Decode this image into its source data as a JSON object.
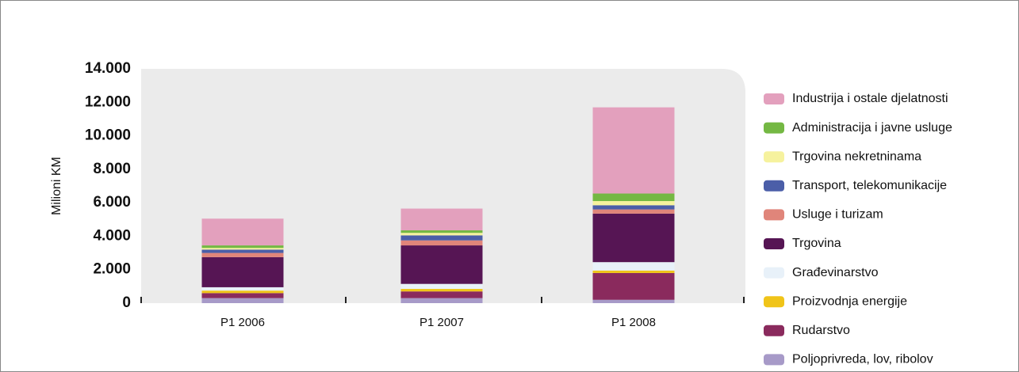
{
  "chart_data": {
    "type": "stacked_bar",
    "y_axis_label": "Milioni KM",
    "categories": [
      "P1 2006",
      "P1 2007",
      "P1 2008"
    ],
    "ylim": [
      0,
      14000
    ],
    "yticks": [
      0,
      {
        "value": 2000,
        "label": "2.000"
      },
      {
        "value": 4000,
        "label": "4.000"
      },
      {
        "value": 6000,
        "label": "6.000"
      },
      {
        "value": 8000,
        "label": "8.000"
      },
      {
        "value": 10000,
        "label": "10.000"
      },
      {
        "value": 12000,
        "label": "12.000"
      },
      {
        "value": 14000,
        "label": "14.000"
      }
    ],
    "series": [
      {
        "name": "Poljoprivreda, lov, ribolov",
        "color": "#a79ac8",
        "values": [
          300,
          300,
          200
        ]
      },
      {
        "name": "Rudarstvo",
        "color": "#8a2a5d",
        "values": [
          300,
          400,
          1600
        ]
      },
      {
        "name": "Proizvodnja energije",
        "color": "#f0c419",
        "values": [
          150,
          150,
          150
        ]
      },
      {
        "name": "Građevinarstvo",
        "color": "#e8f1f9",
        "values": [
          200,
          300,
          500
        ]
      },
      {
        "name": "Trgovina",
        "color": "#561554",
        "values": [
          1800,
          2300,
          2900
        ]
      },
      {
        "name": "Usluge i turizam",
        "color": "#e0857a",
        "values": [
          250,
          300,
          250
        ]
      },
      {
        "name": "Transport, telekomunikacije",
        "color": "#4b5ea8",
        "values": [
          200,
          300,
          250
        ]
      },
      {
        "name": "Trgovina nekretninama",
        "color": "#f6f29e",
        "values": [
          100,
          150,
          250
        ]
      },
      {
        "name": "Administracija i javne usluge",
        "color": "#74b843",
        "values": [
          150,
          150,
          450
        ]
      },
      {
        "name": "Industrija i ostale djelatnosti",
        "color": "#e3a0bd",
        "values": [
          1600,
          1300,
          5150
        ]
      }
    ]
  }
}
